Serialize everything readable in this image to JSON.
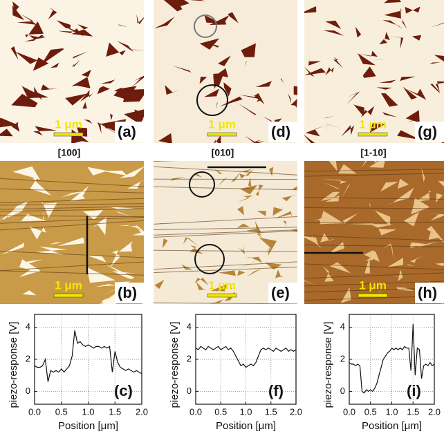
{
  "panels": [
    {
      "label": "(a)",
      "scale": "1 μm"
    },
    {
      "label": "(d)",
      "scale": "1 μm"
    },
    {
      "label": "(g)",
      "scale": "1 μm"
    },
    {
      "label": "(b)",
      "scale": "1 μm"
    },
    {
      "label": "(e)",
      "scale": "1 μm"
    },
    {
      "label": "(h)",
      "scale": "1 μm"
    }
  ],
  "directions": [
    "[100]",
    "[010]",
    "[1-10]"
  ],
  "chart_data": [
    {
      "type": "line",
      "label": "(c)",
      "x_label": "Position [μm]",
      "y_label": "piezo-response [V]",
      "x": [
        0,
        0.05,
        0.1,
        0.15,
        0.2,
        0.25,
        0.3,
        0.35,
        0.4,
        0.45,
        0.5,
        0.55,
        0.6,
        0.65,
        0.7,
        0.75,
        0.8,
        0.85,
        0.9,
        0.95,
        1.0,
        1.05,
        1.1,
        1.15,
        1.2,
        1.25,
        1.3,
        1.35,
        1.4,
        1.45,
        1.5,
        1.55,
        1.6,
        1.65,
        1.7,
        1.75,
        1.8,
        1.85,
        1.9,
        1.95,
        2.0
      ],
      "series": [
        {
          "color": "#111111",
          "values": [
            1.6,
            1.5,
            1.5,
            1.6,
            2.0,
            0.6,
            1.3,
            1.2,
            1.3,
            1.2,
            1.4,
            1.2,
            1.4,
            1.6,
            2.2,
            3.8,
            3.0,
            3.1,
            2.9,
            2.8,
            2.9,
            2.8,
            2.7,
            2.8,
            2.8,
            2.7,
            2.8,
            2.7,
            2.8,
            1.2,
            2.5,
            1.8,
            1.5,
            1.4,
            1.3,
            1.4,
            1.3,
            1.2,
            1.3,
            1.2,
            1.1
          ]
        }
      ],
      "xlim": [
        0,
        2
      ],
      "ylim": [
        -0.8,
        4.8
      ],
      "xticks": [
        {
          "value": 0,
          "label": "0.0"
        },
        0.5,
        {
          "value": 1,
          "label": "1.0"
        },
        1.5,
        {
          "value": 2,
          "label": "2.0"
        }
      ],
      "yticks": [
        0,
        2,
        4
      ],
      "grid": true
    },
    {
      "type": "line",
      "label": "(f)",
      "x_label": "Position [μm]",
      "y_label": "piezo-response [V]",
      "x": [
        0,
        0.05,
        0.1,
        0.15,
        0.2,
        0.25,
        0.3,
        0.35,
        0.4,
        0.45,
        0.5,
        0.55,
        0.6,
        0.65,
        0.7,
        0.75,
        0.8,
        0.85,
        0.9,
        0.95,
        1.0,
        1.05,
        1.1,
        1.15,
        1.2,
        1.25,
        1.3,
        1.35,
        1.4,
        1.45,
        1.5,
        1.55,
        1.6,
        1.65,
        1.7,
        1.75,
        1.8,
        1.85,
        1.9,
        1.95,
        2.0
      ],
      "series": [
        {
          "color": "#111111",
          "values": [
            2.7,
            2.6,
            2.8,
            2.7,
            2.6,
            2.8,
            2.7,
            2.6,
            2.7,
            2.8,
            2.6,
            2.7,
            2.8,
            2.6,
            2.7,
            2.5,
            2.2,
            1.9,
            1.6,
            1.7,
            1.5,
            1.6,
            1.7,
            1.6,
            1.8,
            2.2,
            2.6,
            2.7,
            2.6,
            2.7,
            2.6,
            2.5,
            2.7,
            2.6,
            2.5,
            2.6,
            2.7,
            2.5,
            2.6,
            2.5,
            2.6
          ]
        }
      ],
      "xlim": [
        0,
        2
      ],
      "ylim": [
        -0.8,
        4.8
      ],
      "xticks": [
        {
          "value": 0,
          "label": "0.0"
        },
        0.5,
        {
          "value": 1,
          "label": "1.0"
        },
        1.5,
        {
          "value": 2,
          "label": "2.0"
        }
      ],
      "yticks": [
        0,
        2,
        4
      ],
      "grid": true
    },
    {
      "type": "line",
      "label": "(i)",
      "x_label": "Position [μm]",
      "y_label": "piezo-response [V]",
      "x": [
        0,
        0.05,
        0.1,
        0.15,
        0.2,
        0.25,
        0.3,
        0.35,
        0.4,
        0.45,
        0.5,
        0.55,
        0.6,
        0.65,
        0.7,
        0.75,
        0.8,
        0.85,
        0.9,
        0.95,
        1.0,
        1.05,
        1.1,
        1.15,
        1.2,
        1.25,
        1.3,
        1.35,
        1.4,
        1.45,
        1.5,
        1.55,
        1.6,
        1.65,
        1.7,
        1.75,
        1.8,
        1.85,
        1.9,
        1.95,
        2.0
      ],
      "series": [
        {
          "color": "#111111",
          "values": [
            1.8,
            1.7,
            1.7,
            1.6,
            1.7,
            1.6,
            0.0,
            -0.1,
            0.1,
            0.0,
            0.1,
            0.0,
            0.2,
            0.5,
            1.0,
            1.5,
            2.0,
            2.2,
            2.4,
            2.5,
            2.7,
            2.6,
            2.7,
            2.6,
            2.7,
            2.6,
            2.8,
            2.7,
            2.7,
            1.3,
            4.2,
            1.0,
            2.7,
            2.6,
            0.8,
            1.6,
            1.7,
            1.6,
            1.8,
            1.6,
            1.7
          ]
        }
      ],
      "xlim": [
        0,
        2
      ],
      "ylim": [
        -0.8,
        4.8
      ],
      "xticks": [
        {
          "value": 0,
          "label": "0.0"
        },
        0.5,
        {
          "value": 1,
          "label": "1.0"
        },
        1.5,
        {
          "value": 2,
          "label": "2.0"
        }
      ],
      "yticks": [
        0,
        2,
        4
      ],
      "grid": true
    }
  ]
}
